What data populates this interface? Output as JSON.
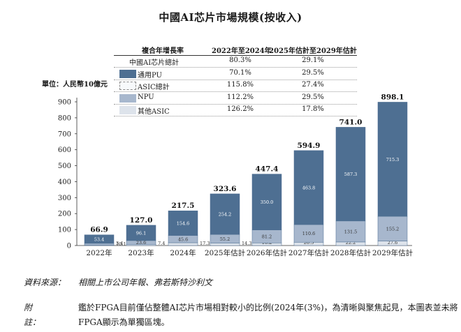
{
  "title": "中國AI芯片市場規模(按收入)",
  "unit_label": "單位：人民幣10億元",
  "colors": {
    "gpu": "#4e6f92",
    "asic": "#f7f9fb",
    "npu": "#a7b7cd",
    "other_asic": "#dde3eb",
    "outline": "#4e6f92"
  },
  "cagr_table": {
    "header": [
      "複合年增長率",
      "2022年至2024年",
      "2025年估計至2029年估計"
    ],
    "rows": [
      {
        "label": "中國AI芯片總計",
        "swatch": "none",
        "v1": "80.3%",
        "v2": "29.1%"
      },
      {
        "label": "通用PU",
        "swatch": "gpu",
        "v1": "70.1%",
        "v2": "29.5%"
      },
      {
        "label": "ASIC總計",
        "swatch": "asic",
        "v1": "115.8%",
        "v2": "27.4%"
      },
      {
        "label": "NPU",
        "swatch": "npu",
        "v1": "112.2%",
        "v2": "29.5%"
      },
      {
        "label": "其他ASIC",
        "swatch": "other_asic",
        "v1": "126.2%",
        "v2": "17.8%"
      }
    ]
  },
  "chart_data": {
    "type": "bar",
    "stacked": true,
    "title": "中國AI芯片市場規模(按收入)",
    "ylabel": "單位：人民幣10億元",
    "ylim": [
      0,
      900
    ],
    "yticks": [
      0,
      100,
      200,
      300,
      400,
      500,
      600,
      700,
      800,
      900
    ],
    "categories": [
      "2022年",
      "2023年",
      "2024年",
      "2025年估計",
      "2026年估計",
      "2027年估計",
      "2028年估計",
      "2029年估計"
    ],
    "totals": [
      66.9,
      127.0,
      217.5,
      323.6,
      447.4,
      594.9,
      741.0,
      898.1
    ],
    "total_labels": [
      "66.9",
      "127.0",
      "217.5",
      "323.6",
      "447.4",
      "594.9",
      "741.0",
      "898.1"
    ],
    "series": [
      {
        "name": "其他ASIC",
        "key": "other_asic",
        "values": [
          3.4,
          7.4,
          17.3,
          14.3,
          16.2,
          20.5,
          22.2,
          27.6
        ],
        "labels": [
          "3.4",
          "7.4",
          "17.3",
          "14.3",
          "16.2",
          "20.5",
          "22.2",
          "27.6"
        ]
      },
      {
        "name": "NPU",
        "key": "npu",
        "values": [
          10.1,
          23.6,
          45.6,
          55.2,
          81.2,
          110.6,
          131.5,
          155.2
        ],
        "labels": [
          "10.1",
          "23.6",
          "45.6",
          "55.2",
          "81.2",
          "110.6",
          "131.5",
          "155.2"
        ]
      },
      {
        "name": "通用PU",
        "key": "gpu",
        "values": [
          53.4,
          96.1,
          154.6,
          254.2,
          350.0,
          463.8,
          587.3,
          715.3
        ],
        "labels": [
          "53.4",
          "96.1",
          "154.6",
          "254.2",
          "350.0",
          "463.8",
          "587.3",
          "715.3"
        ]
      }
    ]
  },
  "source": {
    "label": "資料來源：",
    "text": "相關上市公司年報、弗若斯特沙利文"
  },
  "note": {
    "label": "附註：",
    "text": "鑑於FPGA目前僅佔整體AI芯片市場相對較小的比例(2024年(3%)，為清晰與聚焦起見，本圖表並未將FPGA顯示為單獨區塊。"
  }
}
